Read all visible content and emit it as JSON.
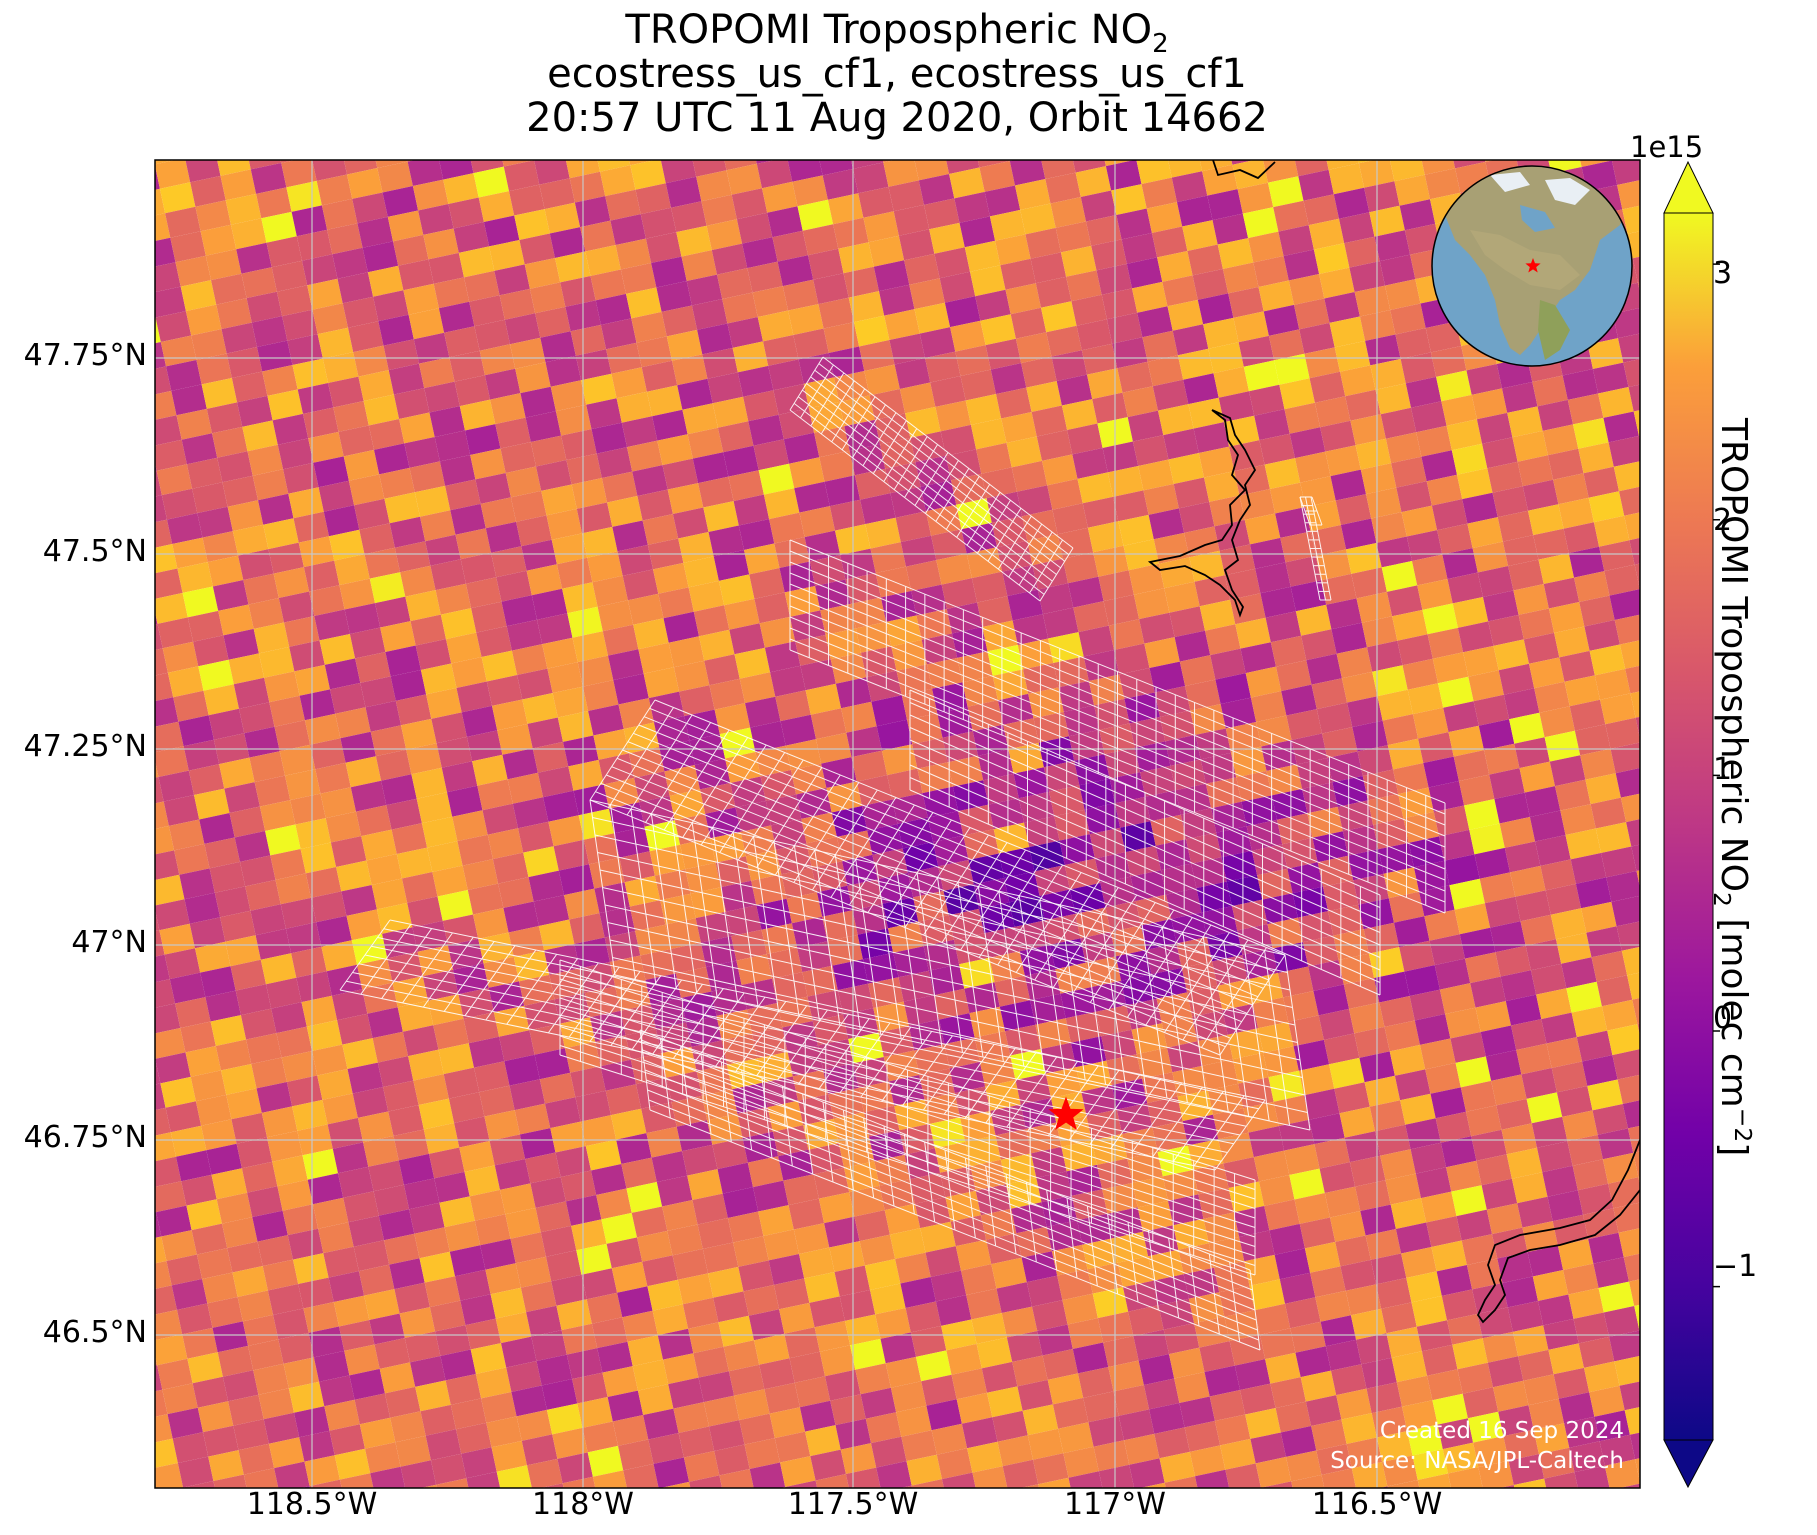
{
  "title": {
    "line1_main": "TROPOMI Tropospheric NO",
    "line1_sub": "2",
    "line2": "ecostress_us_cf1, ecostress_us_cf1",
    "line3": "20:57 UTC 11 Aug 2020, Orbit 14662"
  },
  "map": {
    "lon_range": [
      -118.8,
      -116.05
    ],
    "lat_range": [
      46.3,
      47.97
    ],
    "x_ticks": [
      {
        "value": -118.5,
        "label": "118.5°W"
      },
      {
        "value": -118.0,
        "label": "118°W"
      },
      {
        "value": -117.5,
        "label": "117.5°W"
      },
      {
        "value": -117.0,
        "label": "117°W"
      },
      {
        "value": -116.5,
        "label": "116.5°W"
      }
    ],
    "y_ticks": [
      {
        "value": 47.75,
        "label": "47.75°N"
      },
      {
        "value": 47.5,
        "label": "47.5°N"
      },
      {
        "value": 47.25,
        "label": "47.25°N"
      },
      {
        "value": 47.0,
        "label": "47°N"
      },
      {
        "value": 46.75,
        "label": "46.75°N"
      },
      {
        "value": 46.5,
        "label": "46.5°N"
      }
    ],
    "gridlines": true,
    "colormap": "plasma",
    "site_marker": {
      "lon": -117.08,
      "lat": 46.78,
      "color": "#ff0000",
      "shape": "star"
    },
    "inset_globe": {
      "position": "top-right",
      "marker_color": "#ff0000"
    },
    "credits": {
      "created": "Created 16 Sep 2024",
      "source": "Source: NASA/JPL-Caltech"
    }
  },
  "colorbar": {
    "min": -1.6,
    "max": 3.2,
    "exponent_label": "1e15",
    "extend": "both",
    "ticks": [
      {
        "value": 3,
        "label": "3"
      },
      {
        "value": 2,
        "label": "2"
      },
      {
        "value": 1,
        "label": "1"
      },
      {
        "value": 0,
        "label": "0"
      },
      {
        "value": -1,
        "label": "−1"
      }
    ],
    "label_main": "TROPOMI Tropospheric NO",
    "label_sub": "2",
    "label_units": " [molec cm",
    "label_sup": "−2",
    "label_close": "]"
  }
}
